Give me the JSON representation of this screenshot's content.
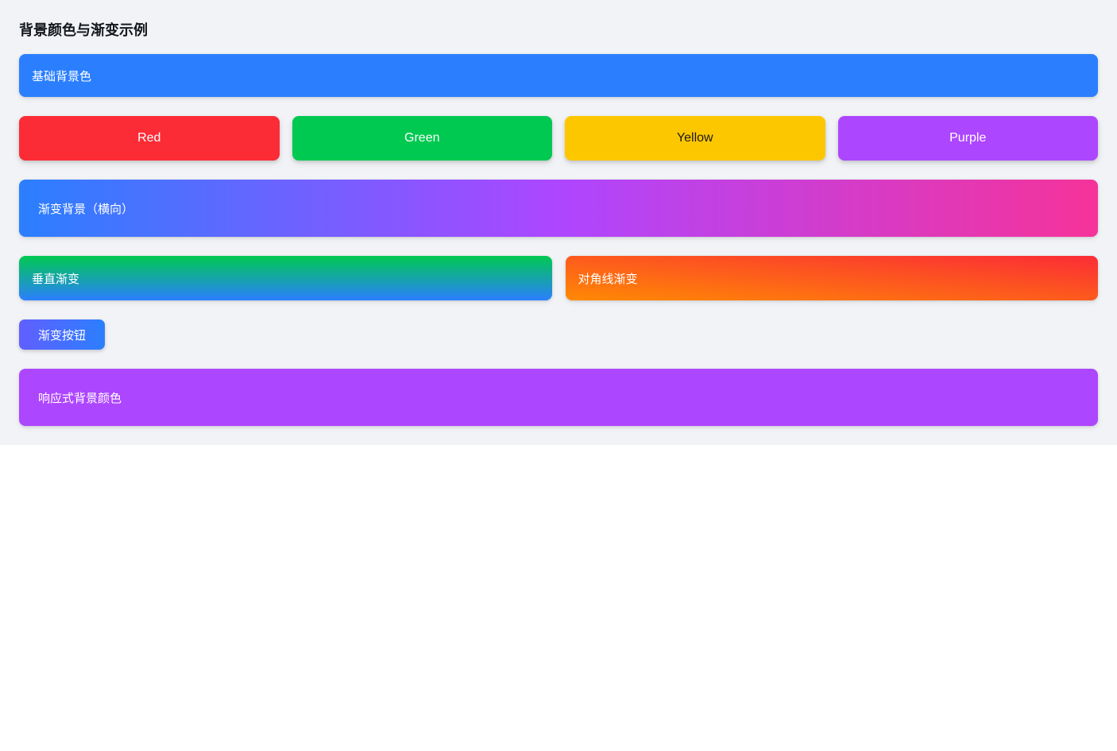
{
  "page": {
    "section_bg": "#f1f3f6",
    "canvas_bg": "#ffffff"
  },
  "title": "背景颜色与渐变示例",
  "basic_bar": {
    "label": "基础背景色",
    "background": "#2b7fff",
    "text_color": "#ffffff"
  },
  "color_boxes": [
    {
      "label": "Red",
      "background": "#fb2c36",
      "text_color": "#ffffff"
    },
    {
      "label": "Green",
      "background": "#00c951",
      "text_color": "#ffffff"
    },
    {
      "label": "Yellow",
      "background": "#fdc700",
      "text_color": "#1a1a1a"
    },
    {
      "label": "Purple",
      "background": "#ad46ff",
      "text_color": "#ffffff"
    }
  ],
  "horizontal_gradient": {
    "label": "渐变背景（横向）",
    "background": "linear-gradient(to right, #2b7fff, #ad46ff, #f6339a)",
    "from": "#2b7fff",
    "via": "#ad46ff",
    "to": "#f6339a",
    "text_color": "#ffffff"
  },
  "vertical_gradient": {
    "label": "垂直渐变",
    "background": "linear-gradient(to bottom, #00c951, #2b7fff)",
    "from": "#00c951",
    "to": "#2b7fff",
    "text_color": "#ffffff"
  },
  "diagonal_gradient": {
    "label": "对角线渐变",
    "background": "linear-gradient(to top right, #ff8904, #fb2c36)",
    "from": "#ff8904",
    "to": "#fb2c36",
    "text_color": "#ffffff"
  },
  "gradient_button": {
    "label": "渐变按钮",
    "background": "linear-gradient(to right, #615fff, #2b7fff)",
    "from": "#615fff",
    "to": "#2b7fff",
    "text_color": "#ffffff"
  },
  "responsive_bar": {
    "label": "响应式背景颜色",
    "background": "#ad46ff",
    "text_color": "#ffffff"
  }
}
